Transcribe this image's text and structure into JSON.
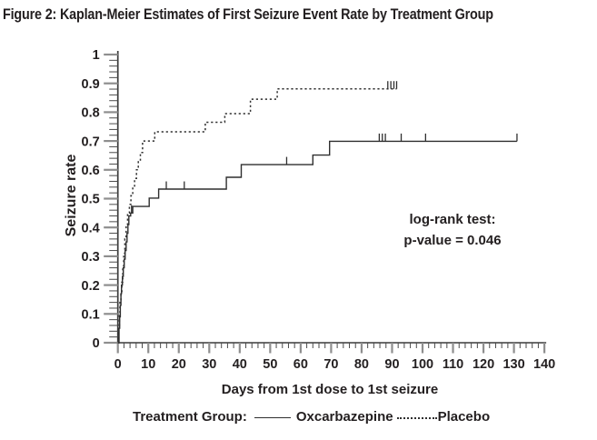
{
  "figure": {
    "title": "Figure 2: Kaplan-Meier Estimates of First Seizure Event Rate by Treatment Group"
  },
  "chart_data": {
    "type": "line",
    "subtype": "kaplan-meier-step",
    "title": "Kaplan-Meier Estimates of First Seizure Event Rate by Treatment Group",
    "xlabel": "Days from 1st dose to 1st seizure",
    "ylabel": "Seizure rate",
    "xlim": [
      0,
      140
    ],
    "ylim": [
      0,
      1
    ],
    "grid": false,
    "legend_label": "Treatment Group:",
    "legend_position": "bottom",
    "annotation": {
      "line1": "log-rank test:",
      "line2": "p-value = 0.046"
    },
    "x_axis": {
      "ticks": [
        {
          "v": 0,
          "t": "0"
        },
        {
          "v": 10,
          "t": "10"
        },
        {
          "v": 20,
          "t": "20"
        },
        {
          "v": 30,
          "t": "30"
        },
        {
          "v": 40,
          "t": "40"
        },
        {
          "v": 50,
          "t": "50"
        },
        {
          "v": 60,
          "t": "60"
        },
        {
          "v": 70,
          "t": "70"
        },
        {
          "v": 80,
          "t": "80"
        },
        {
          "v": 90,
          "t": "90"
        },
        {
          "v": 100,
          "t": "100"
        },
        {
          "v": 110,
          "t": "110"
        },
        {
          "v": 120,
          "t": "120"
        },
        {
          "v": 130,
          "t": "130"
        },
        {
          "v": 140,
          "t": "140"
        }
      ],
      "minor_step": 2
    },
    "y_axis": {
      "ticks": [
        {
          "v": 0,
          "t": "0"
        },
        {
          "v": 0.1,
          "t": "0.1"
        },
        {
          "v": 0.2,
          "t": "0.2"
        },
        {
          "v": 0.3,
          "t": "0.3"
        },
        {
          "v": 0.4,
          "t": "0.4"
        },
        {
          "v": 0.5,
          "t": "0.5"
        },
        {
          "v": 0.6,
          "t": "0.6"
        },
        {
          "v": 0.7,
          "t": "0.7"
        },
        {
          "v": 0.8,
          "t": "0.8"
        },
        {
          "v": 0.9,
          "t": "0.9"
        },
        {
          "v": 1,
          "t": "1"
        }
      ],
      "minor_step": 0.02
    },
    "series": [
      {
        "name": "Oxcarbazepine",
        "style": "solid",
        "points": [
          [
            0,
            0
          ],
          [
            0.4,
            0.05
          ],
          [
            0.6,
            0.09
          ],
          [
            0.8,
            0.13
          ],
          [
            1.0,
            0.17
          ],
          [
            1.2,
            0.2
          ],
          [
            1.5,
            0.23
          ],
          [
            1.8,
            0.26
          ],
          [
            2.1,
            0.29
          ],
          [
            2.4,
            0.32
          ],
          [
            2.7,
            0.35
          ],
          [
            3.0,
            0.38
          ],
          [
            3.3,
            0.41
          ],
          [
            3.6,
            0.44
          ],
          [
            4.2,
            0.45
          ],
          [
            4.9,
            0.473
          ],
          [
            10.3,
            0.502
          ],
          [
            13.4,
            0.533
          ],
          [
            35.6,
            0.574
          ],
          [
            40.5,
            0.618
          ],
          [
            64,
            0.651
          ],
          [
            69.5,
            0.699
          ],
          [
            131,
            0.699
          ]
        ],
        "censor_marks": [
          [
            4.5,
            0.45
          ],
          [
            15.9,
            0.533
          ],
          [
            21.8,
            0.533
          ],
          [
            55.4,
            0.618
          ],
          [
            85.8,
            0.699
          ],
          [
            86.8,
            0.699
          ],
          [
            87.8,
            0.699
          ],
          [
            93,
            0.699
          ],
          [
            101,
            0.699
          ],
          [
            131,
            0.699
          ]
        ]
      },
      {
        "name": "Placebo",
        "style": "dotted",
        "points": [
          [
            0,
            0
          ],
          [
            0.3,
            0.06
          ],
          [
            0.5,
            0.1
          ],
          [
            0.7,
            0.14
          ],
          [
            1.0,
            0.17
          ],
          [
            1.3,
            0.21
          ],
          [
            1.6,
            0.26
          ],
          [
            1.9,
            0.31
          ],
          [
            2.3,
            0.36
          ],
          [
            2.7,
            0.41
          ],
          [
            3.2,
            0.45
          ],
          [
            3.8,
            0.48
          ],
          [
            4.3,
            0.51
          ],
          [
            4.9,
            0.54
          ],
          [
            5.5,
            0.57
          ],
          [
            6.1,
            0.6
          ],
          [
            6.7,
            0.63
          ],
          [
            7.4,
            0.66
          ],
          [
            8.1,
            0.7
          ],
          [
            12.1,
            0.732
          ],
          [
            28.7,
            0.765
          ],
          [
            35.1,
            0.795
          ],
          [
            43.5,
            0.845
          ],
          [
            52.3,
            0.881
          ],
          [
            91.5,
            0.881
          ]
        ],
        "censor_marks": [
          [
            88.6,
            0.881
          ],
          [
            89.6,
            0.881
          ],
          [
            90.6,
            0.881
          ],
          [
            91.5,
            0.881
          ]
        ]
      }
    ],
    "colors": {
      "line": "#2f2f2f",
      "axis": "#3a3a3a",
      "tick_major": "#8e8e8e",
      "tick_minor": "#4a4a4a",
      "text": "#231f20",
      "background": "#ffffff"
    }
  }
}
